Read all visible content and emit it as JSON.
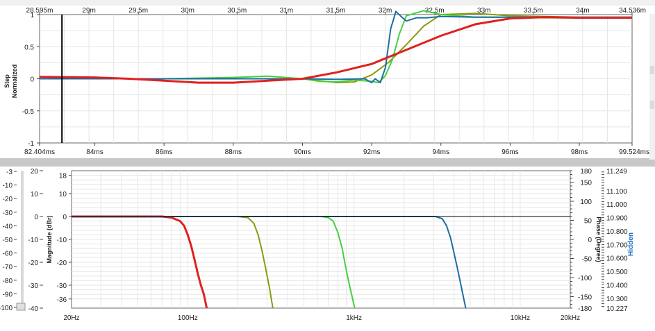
{
  "colors": {
    "red": "#e02020",
    "olive": "#8a9a10",
    "green": "#44d040",
    "blue": "#1a6fa0",
    "grid": "#e6e6e6",
    "divider": "#c8c8c8",
    "hidden_label": "#1a6fc4"
  },
  "chart_data": [
    {
      "type": "line",
      "name": "step-response",
      "ylabel_1": "Step",
      "ylabel_2": "Normalized",
      "ylim": [
        -1,
        1
      ],
      "y_ticks": [
        "1",
        "0.5",
        "0",
        "-0.5",
        "-1"
      ],
      "top_axis_ticks": [
        "28.595m",
        "29m",
        "29.5m",
        "30m",
        "30.5m",
        "31m",
        "31.5m",
        "32m",
        "32.5m",
        "33m",
        "33.5m",
        "34m",
        "34.536m"
      ],
      "bottom_axis_ticks": [
        "82.404ms",
        "84ms",
        "86ms",
        "88ms",
        "90ms",
        "92ms",
        "94ms",
        "96ms",
        "98ms",
        "99.524ms"
      ],
      "xlim_ms": [
        82.404,
        99.524
      ],
      "cursor_ms": 83.05,
      "grid": true,
      "series": [
        {
          "color": "red",
          "x": [
            82.404,
            84,
            85,
            86,
            87,
            88,
            89,
            90,
            91,
            92,
            93,
            94,
            95,
            96,
            97,
            98,
            99.524
          ],
          "y": [
            0.03,
            0.02,
            0.0,
            -0.03,
            -0.06,
            -0.06,
            -0.03,
            0.0,
            0.1,
            0.23,
            0.45,
            0.67,
            0.85,
            0.94,
            0.96,
            0.95,
            0.95
          ]
        },
        {
          "color": "olive",
          "x": [
            82.404,
            84,
            86,
            88,
            89,
            90,
            91,
            91.5,
            92,
            92.5,
            93,
            93.5,
            94,
            95,
            96,
            97,
            98,
            99.524
          ],
          "y": [
            0.0,
            0.0,
            0.0,
            0.0,
            0.0,
            0.0,
            -0.06,
            -0.05,
            0.06,
            0.26,
            0.53,
            0.82,
            1.0,
            1.02,
            0.98,
            0.97,
            0.96,
            0.96
          ]
        },
        {
          "color": "green",
          "x": [
            82.404,
            84,
            86,
            88,
            89,
            90,
            90.5,
            91,
            91.5,
            92,
            92.2,
            92.4,
            92.6,
            92.8,
            93,
            93.5,
            94,
            95,
            96,
            97,
            98,
            99.524
          ],
          "y": [
            0.0,
            0.0,
            0.0,
            0.02,
            0.04,
            0.0,
            -0.04,
            -0.05,
            -0.02,
            -0.04,
            -0.06,
            0.05,
            0.3,
            0.7,
            0.98,
            1.06,
            1.0,
            0.96,
            0.96,
            0.95,
            0.95,
            0.95
          ]
        },
        {
          "color": "blue",
          "x": [
            82.404,
            84,
            86,
            88,
            90,
            91,
            91.8,
            92.0,
            92.1,
            92.25,
            92.4,
            92.55,
            92.7,
            92.85,
            93.0,
            93.3,
            93.6,
            94,
            95,
            96,
            97,
            98,
            99.524
          ],
          "y": [
            0.0,
            0.0,
            0.0,
            0.0,
            0.0,
            -0.01,
            0.0,
            -0.06,
            0.0,
            -0.06,
            0.18,
            0.78,
            1.05,
            0.97,
            0.9,
            0.95,
            0.95,
            0.97,
            0.96,
            0.96,
            0.96,
            0.96,
            0.96
          ]
        }
      ]
    },
    {
      "type": "line",
      "name": "frequency-response",
      "xscale": "log",
      "xlim_hz": [
        20,
        20000
      ],
      "x_ticks": [
        "20Hz",
        "100Hz",
        "1kHz",
        "10kHz",
        "20kHz"
      ],
      "ylabel": "Magnitude (dBr)",
      "ylim_db": [
        -40,
        20
      ],
      "y_ticks_outer": [
        "20",
        "10",
        "0",
        "-10",
        "-20",
        "-30",
        "-40"
      ],
      "y_ticks_inner": [
        "18",
        "10",
        "0",
        "-10",
        "-20",
        "-30",
        "-36"
      ],
      "y2label": "Phase (Degree)",
      "y2_ticks": [
        "180",
        "150",
        "100",
        "50",
        "0",
        "-50",
        "-100",
        "-150",
        "-180"
      ],
      "y3label": "Hidden",
      "y3_ticks": [
        "11.249",
        "11.100",
        "11.000",
        "10.900",
        "10.800",
        "10.700",
        "10.600",
        "10.500",
        "10.400",
        "10.300",
        "10.227"
      ],
      "left_slider_ticks": [
        "-3",
        "-10",
        "-20",
        "-30",
        "-40",
        "-50",
        "-60",
        "-70",
        "-80",
        "-90",
        "-100"
      ],
      "grid": true,
      "series": [
        {
          "color": "red",
          "x": [
            20,
            70,
            80,
            90,
            95,
            100,
            105,
            110,
            115,
            120,
            125,
            130
          ],
          "y": [
            0,
            0,
            -0.5,
            -2,
            -4,
            -8,
            -13,
            -19,
            -25,
            -30,
            -34,
            -40
          ]
        },
        {
          "color": "olive",
          "x": [
            20,
            200,
            230,
            250,
            265,
            280,
            295,
            310,
            325
          ],
          "y": [
            0,
            0,
            -0.5,
            -3,
            -8,
            -15,
            -23,
            -31,
            -40
          ]
        },
        {
          "color": "green",
          "x": [
            20,
            640,
            700,
            750,
            800,
            850,
            880,
            920,
            960,
            1010
          ],
          "y": [
            0,
            0,
            -0.5,
            -2,
            -7,
            -14,
            -20,
            -27,
            -33,
            -40
          ]
        },
        {
          "color": "blue",
          "x": [
            20,
            3100,
            3400,
            3600,
            3800,
            4000,
            4200,
            4400,
            4700
          ],
          "y": [
            0,
            0,
            -1,
            -4,
            -9,
            -16,
            -23,
            -30,
            -40
          ]
        },
        {
          "color": "black",
          "x": [
            20,
            20000
          ],
          "y": [
            0,
            0
          ]
        }
      ]
    }
  ]
}
